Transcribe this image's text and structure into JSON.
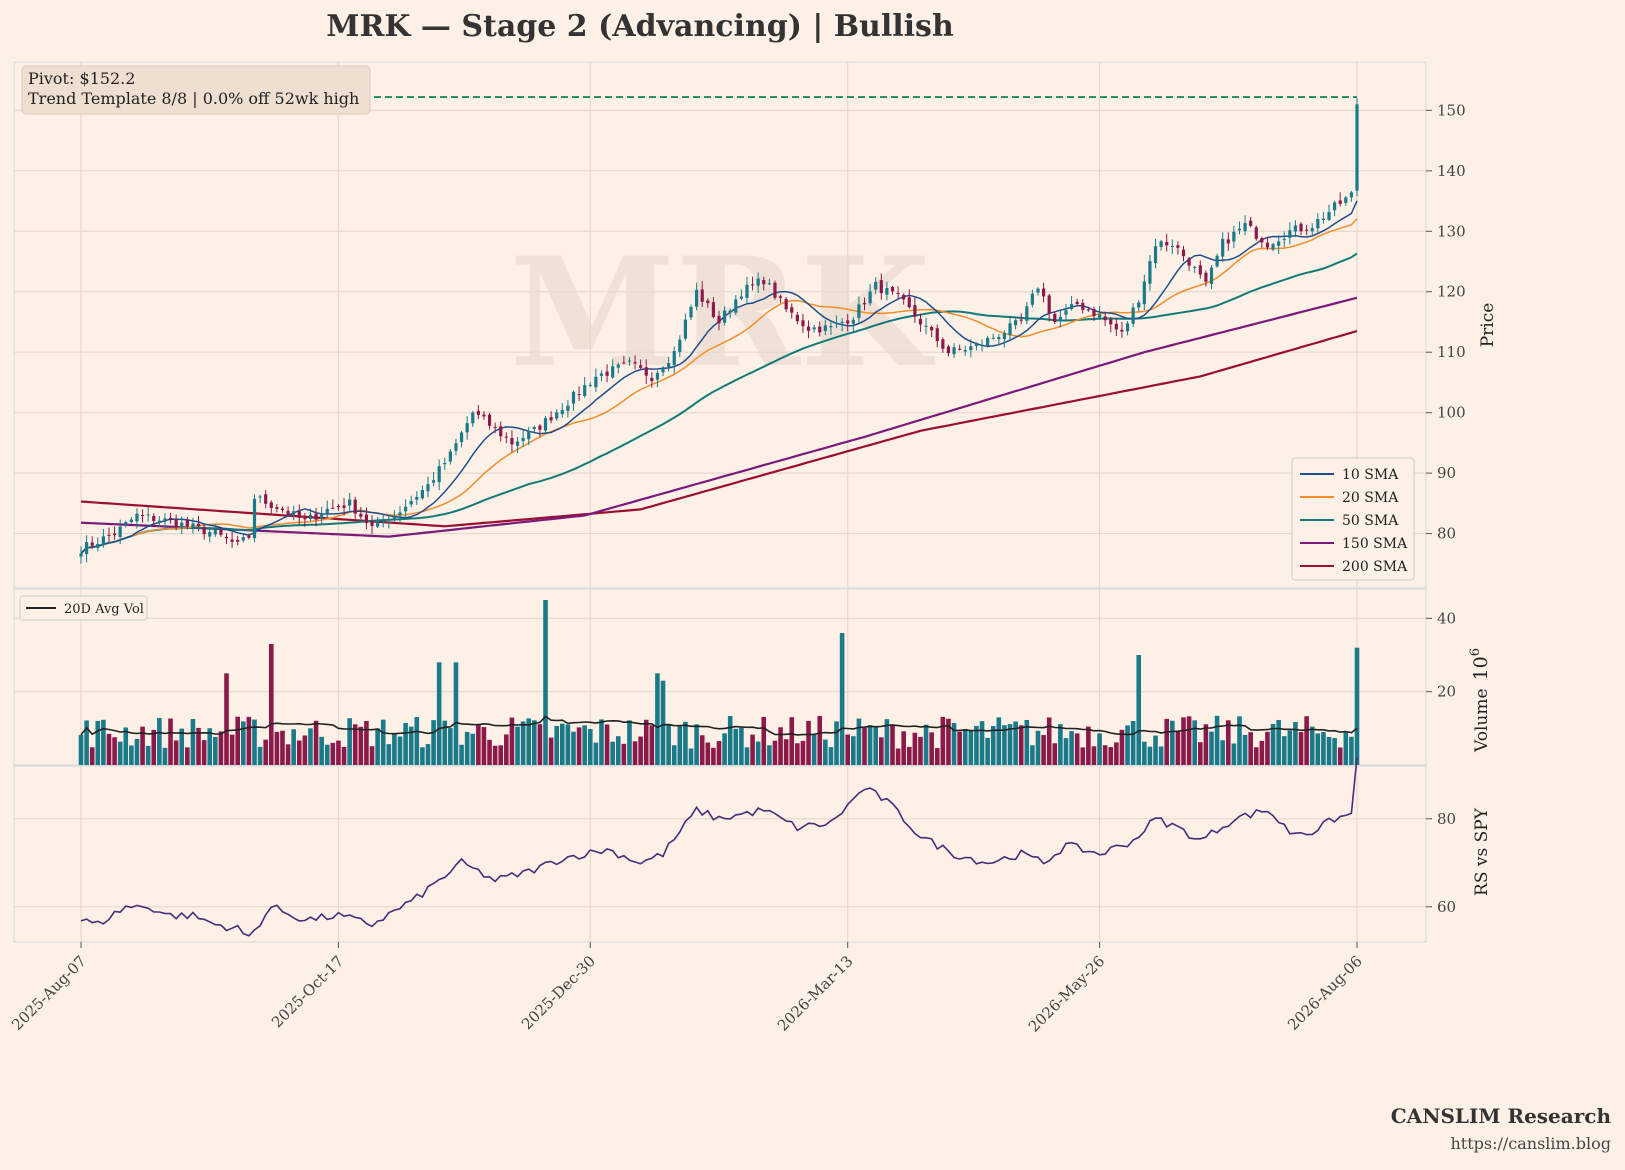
{
  "title": "MRK  —  Stage 2 (Advancing)  |  Bullish",
  "watermark": "MRK",
  "info": {
    "line1": "Pivot: $152.2",
    "line2": "Trend Template 8/8  |  0.0% off 52wk high"
  },
  "brand": {
    "name": "CANSLIM Research",
    "url": "https://canslim.blog"
  },
  "colors": {
    "background": "#fdf0e6",
    "up": "#1a7a8a",
    "down": "#8b1a4a",
    "sma10": "#1f4e8c",
    "sma20": "#f28e2b",
    "sma50": "#137a7a",
    "sma150": "#7b1a7b",
    "sma200": "#9b1030",
    "pivot": "#1b8a5a",
    "rs": "#4b2a7a",
    "avgvol": "#222222"
  },
  "chart_data": {
    "type": "candlestick",
    "date_ticks": [
      "2025-Aug-07",
      "2025-Oct-17",
      "2025-Dec-30",
      "2026-Mar-13",
      "2026-May-26",
      "2026-Aug-06"
    ],
    "price_panel": {
      "ylabel": "Price",
      "ylim": [
        71,
        158
      ],
      "yticks": [
        80,
        90,
        100,
        110,
        120,
        130,
        140,
        150
      ],
      "pivot": 152.2,
      "close_anchors": [
        [
          0,
          77.5
        ],
        [
          6,
          80
        ],
        [
          10,
          83
        ],
        [
          16,
          82
        ],
        [
          24,
          80
        ],
        [
          28,
          78
        ],
        [
          30,
          79.5
        ],
        [
          31,
          86
        ],
        [
          36,
          84
        ],
        [
          40,
          82
        ],
        [
          44,
          84
        ],
        [
          48,
          85
        ],
        [
          52,
          81
        ],
        [
          56,
          83
        ],
        [
          62,
          88
        ],
        [
          66,
          93
        ],
        [
          70,
          100
        ],
        [
          73,
          98
        ],
        [
          77,
          95
        ],
        [
          81,
          97
        ],
        [
          86,
          101
        ],
        [
          92,
          106
        ],
        [
          98,
          108
        ],
        [
          102,
          106
        ],
        [
          106,
          110
        ],
        [
          110,
          120
        ],
        [
          114,
          115
        ],
        [
          118,
          120
        ],
        [
          122,
          122
        ],
        [
          126,
          117
        ],
        [
          130,
          114
        ],
        [
          134,
          114
        ],
        [
          138,
          116
        ],
        [
          142,
          121
        ],
        [
          146,
          119
        ],
        [
          150,
          115
        ],
        [
          155,
          110
        ],
        [
          160,
          111
        ],
        [
          164,
          113
        ],
        [
          168,
          115
        ],
        [
          171,
          121
        ],
        [
          174,
          115
        ],
        [
          178,
          118
        ],
        [
          182,
          116
        ],
        [
          186,
          113
        ],
        [
          189,
          119
        ],
        [
          192,
          128
        ],
        [
          195,
          128
        ],
        [
          198,
          125
        ],
        [
          201,
          121
        ],
        [
          204,
          128
        ],
        [
          208,
          131
        ],
        [
          212,
          128
        ],
        [
          216,
          130
        ],
        [
          220,
          131
        ],
        [
          224,
          134
        ],
        [
          227,
          136
        ],
        [
          228,
          151
        ]
      ],
      "series": [
        {
          "name": "10 SMA"
        },
        {
          "name": "20 SMA"
        },
        {
          "name": "50 SMA"
        },
        {
          "name": "150 SMA",
          "values_by_index": [
            [
              0,
              81.8
            ],
            [
              55,
              79.5
            ],
            [
              90,
              83
            ],
            [
              140,
              96
            ],
            [
              190,
              110
            ],
            [
              228,
              119
            ]
          ]
        },
        {
          "name": "200 SMA",
          "values_by_index": [
            [
              0,
              85.3
            ],
            [
              65,
              81.2
            ],
            [
              100,
              84
            ],
            [
              150,
              97
            ],
            [
              200,
              106
            ],
            [
              228,
              113.5
            ]
          ]
        }
      ]
    },
    "volume_panel": {
      "ylabel": "Volume",
      "unit": "10",
      "unit_exponent": "6",
      "ylim": [
        0,
        48
      ],
      "yticks": [
        20,
        40
      ],
      "legend": "20D Avg Vol",
      "base_volume": 10,
      "spikes": [
        [
          26,
          25
        ],
        [
          34,
          33
        ],
        [
          64,
          28
        ],
        [
          67,
          28
        ],
        [
          83,
          45
        ],
        [
          103,
          25
        ],
        [
          104,
          23
        ],
        [
          136,
          36
        ],
        [
          189,
          30
        ],
        [
          228,
          32
        ]
      ]
    },
    "rs_panel": {
      "ylabel": "RS vs SPY",
      "ylim": [
        52,
        92
      ],
      "yticks": [
        60,
        80
      ],
      "anchors": [
        [
          0,
          57
        ],
        [
          3,
          56
        ],
        [
          8,
          60
        ],
        [
          12,
          60
        ],
        [
          16,
          58
        ],
        [
          20,
          58
        ],
        [
          24,
          56
        ],
        [
          28,
          55
        ],
        [
          30,
          53
        ],
        [
          34,
          60
        ],
        [
          40,
          57
        ],
        [
          46,
          58
        ],
        [
          52,
          56
        ],
        [
          60,
          62
        ],
        [
          68,
          70
        ],
        [
          74,
          66
        ],
        [
          80,
          68
        ],
        [
          86,
          71
        ],
        [
          94,
          73
        ],
        [
          100,
          70
        ],
        [
          104,
          72
        ],
        [
          110,
          82
        ],
        [
          114,
          80
        ],
        [
          122,
          82
        ],
        [
          128,
          78
        ],
        [
          134,
          79
        ],
        [
          140,
          87
        ],
        [
          144,
          84
        ],
        [
          150,
          76
        ],
        [
          156,
          72
        ],
        [
          162,
          70
        ],
        [
          168,
          72
        ],
        [
          172,
          70
        ],
        [
          176,
          74
        ],
        [
          182,
          72
        ],
        [
          188,
          75
        ],
        [
          192,
          80
        ],
        [
          196,
          78
        ],
        [
          200,
          75
        ],
        [
          206,
          80
        ],
        [
          212,
          82
        ],
        [
          216,
          77
        ],
        [
          220,
          77
        ],
        [
          224,
          80
        ],
        [
          227,
          81
        ],
        [
          228,
          94
        ]
      ]
    },
    "legend": [
      "10 SMA",
      "20 SMA",
      "50 SMA",
      "150 SMA",
      "200 SMA"
    ],
    "n_bars": 229
  }
}
